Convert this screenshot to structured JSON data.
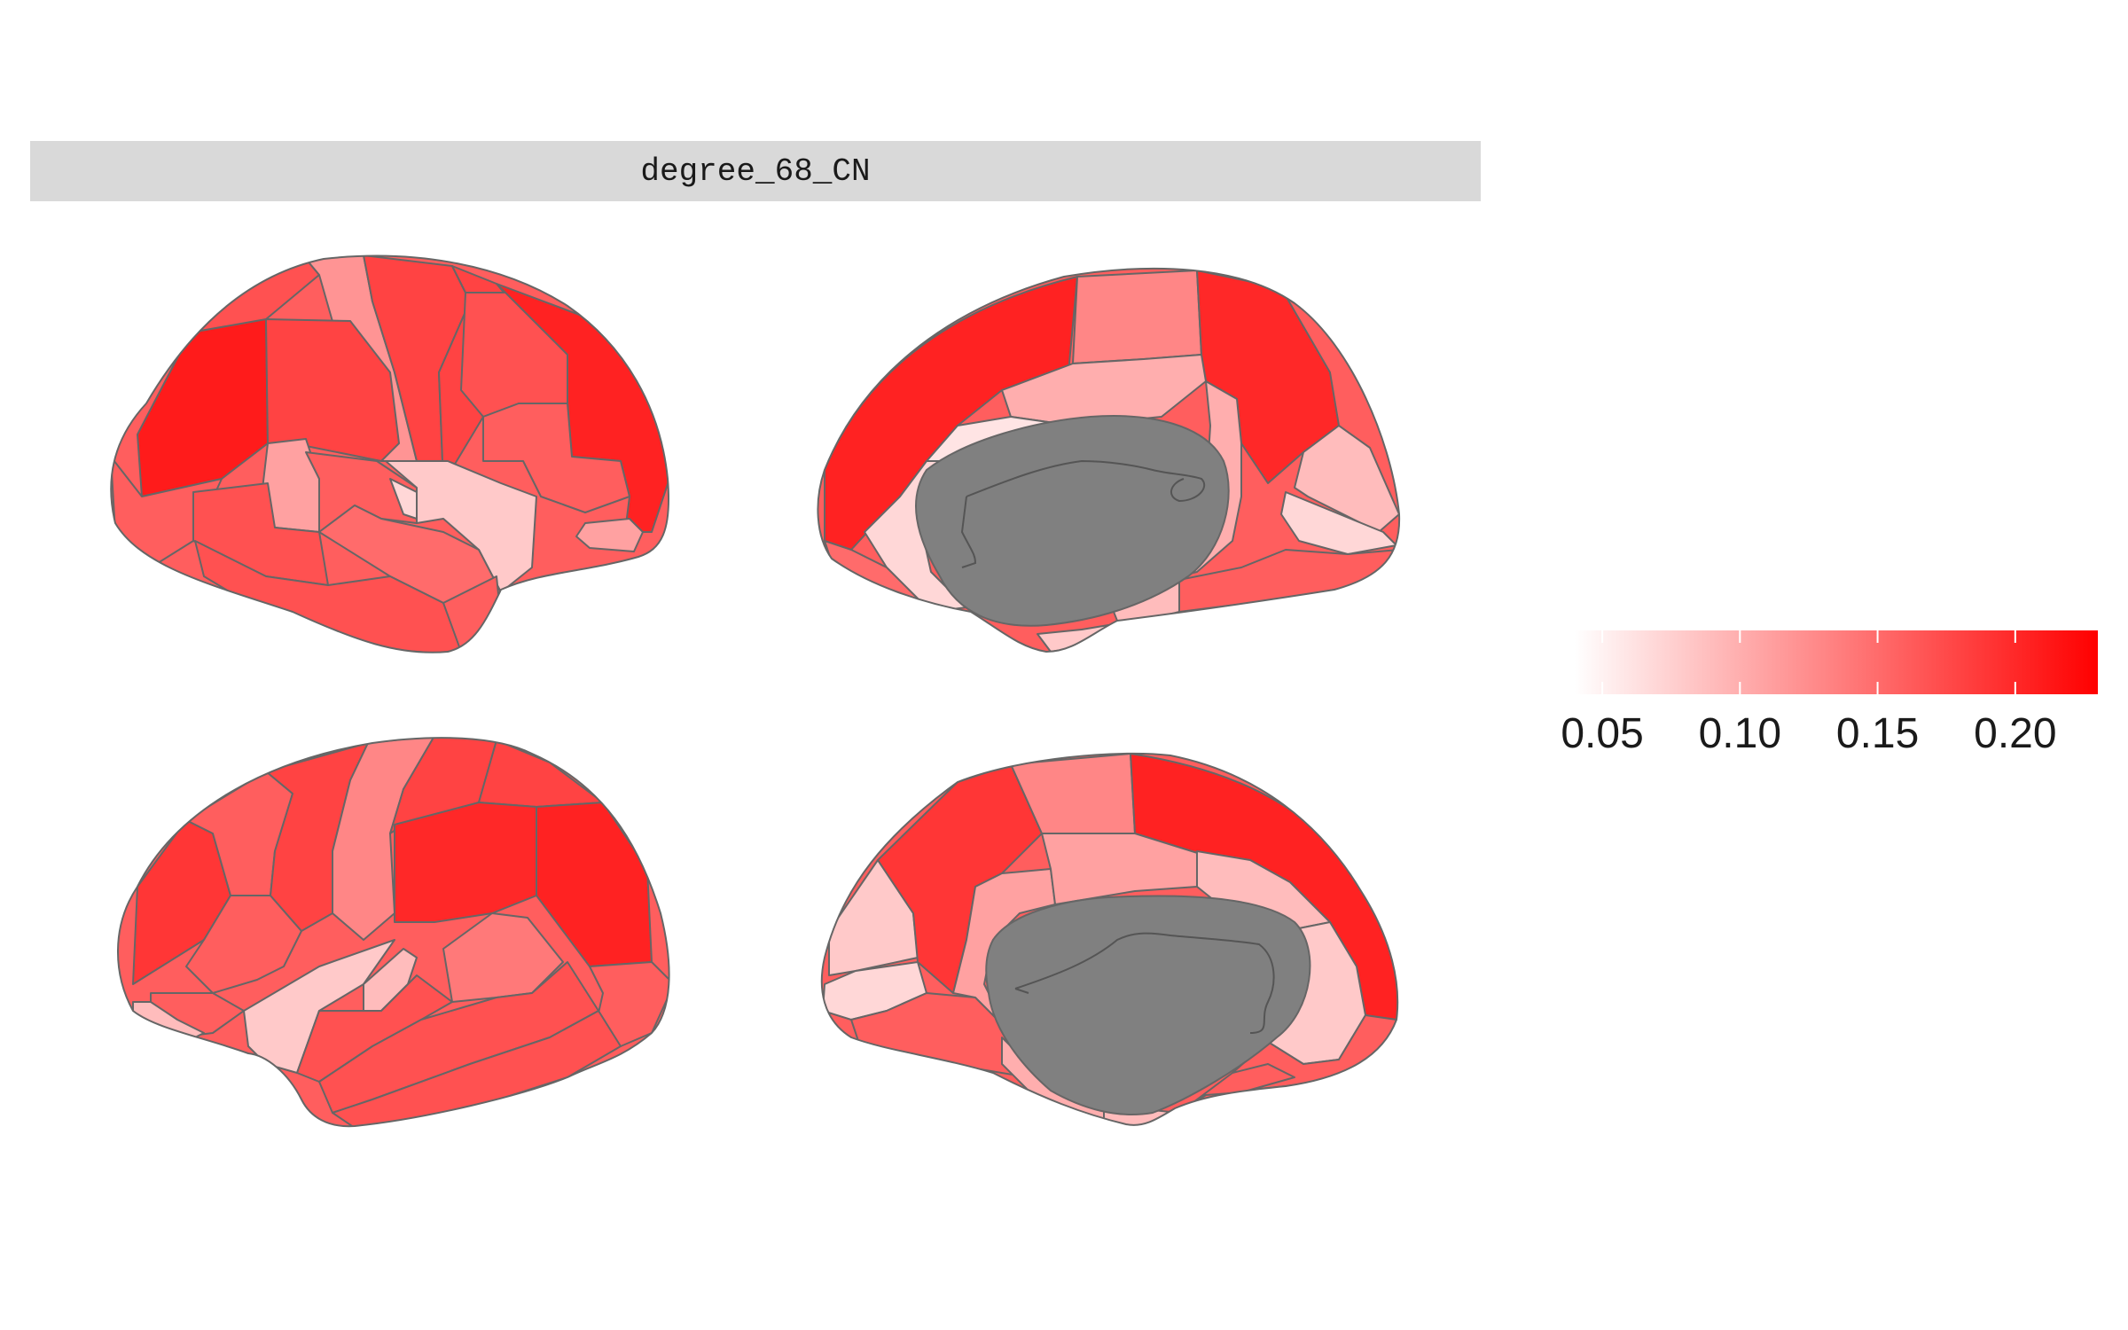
{
  "panel": {
    "title": "degree_68_CN"
  },
  "colors": {
    "low": "#ffffff",
    "high": "#ff0000",
    "medial_wall": "#808080",
    "outline": "#666666",
    "strip_background": "#d9d9d9"
  },
  "legend": {
    "type": "continuous-colorbar",
    "range": [
      0.04,
      0.23
    ],
    "ticks": [
      {
        "label": "0.05",
        "value": 0.05
      },
      {
        "label": "0.10",
        "value": 0.1
      },
      {
        "label": "0.15",
        "value": 0.15
      },
      {
        "label": "0.20",
        "value": 0.2
      }
    ]
  },
  "views": [
    {
      "name": "left-lateral"
    },
    {
      "name": "left-medial"
    },
    {
      "name": "right-lateral"
    },
    {
      "name": "right-medial"
    }
  ]
}
